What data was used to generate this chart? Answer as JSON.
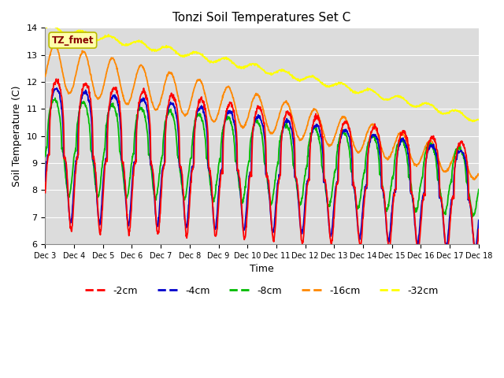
{
  "title": "Tonzi Soil Temperatures Set C",
  "xlabel": "Time",
  "ylabel": "Soil Temperature (C)",
  "ylim": [
    6.0,
    14.0
  ],
  "yticks": [
    6.0,
    7.0,
    8.0,
    9.0,
    10.0,
    11.0,
    12.0,
    13.0,
    14.0
  ],
  "xtick_labels": [
    "Dec 3",
    "Dec 4",
    "Dec 5",
    "Dec 6",
    "Dec 7",
    "Dec 8",
    "Dec 9",
    "Dec 10",
    "Dec 11",
    "Dec 12",
    "Dec 13",
    "Dec 14",
    "Dec 15",
    "Dec 16",
    "Dec 17",
    "Dec 18"
  ],
  "series_colors": [
    "#ff0000",
    "#0000cc",
    "#00bb00",
    "#ff8800",
    "#ffff00"
  ],
  "series_labels": [
    "-2cm",
    "-4cm",
    "-8cm",
    "-16cm",
    "-32cm"
  ],
  "background_color": "#dcdcdc",
  "annotation_text": "TZ_fmet",
  "annotation_box_color": "#ffffaa",
  "annotation_box_edge": "#bbbb00"
}
